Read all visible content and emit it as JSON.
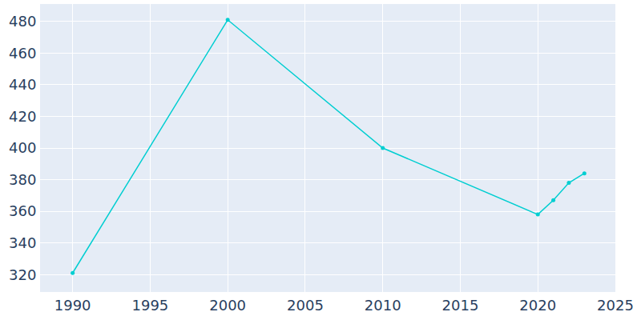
{
  "chart_data": {
    "type": "line",
    "x": [
      1990,
      2000,
      2010,
      2020,
      2021,
      2022,
      2023
    ],
    "values": [
      321,
      481,
      400,
      358,
      367,
      378,
      384
    ],
    "color": "#00ced1",
    "marker": "circle",
    "xlim": [
      1987.9,
      2025
    ],
    "xticks": [
      1990,
      1995,
      2000,
      2005,
      2010,
      2015,
      2020,
      2025
    ],
    "ylim": [
      309,
      491
    ],
    "yticks": [
      320,
      340,
      360,
      380,
      400,
      420,
      440,
      460,
      480
    ],
    "grid": true
  }
}
